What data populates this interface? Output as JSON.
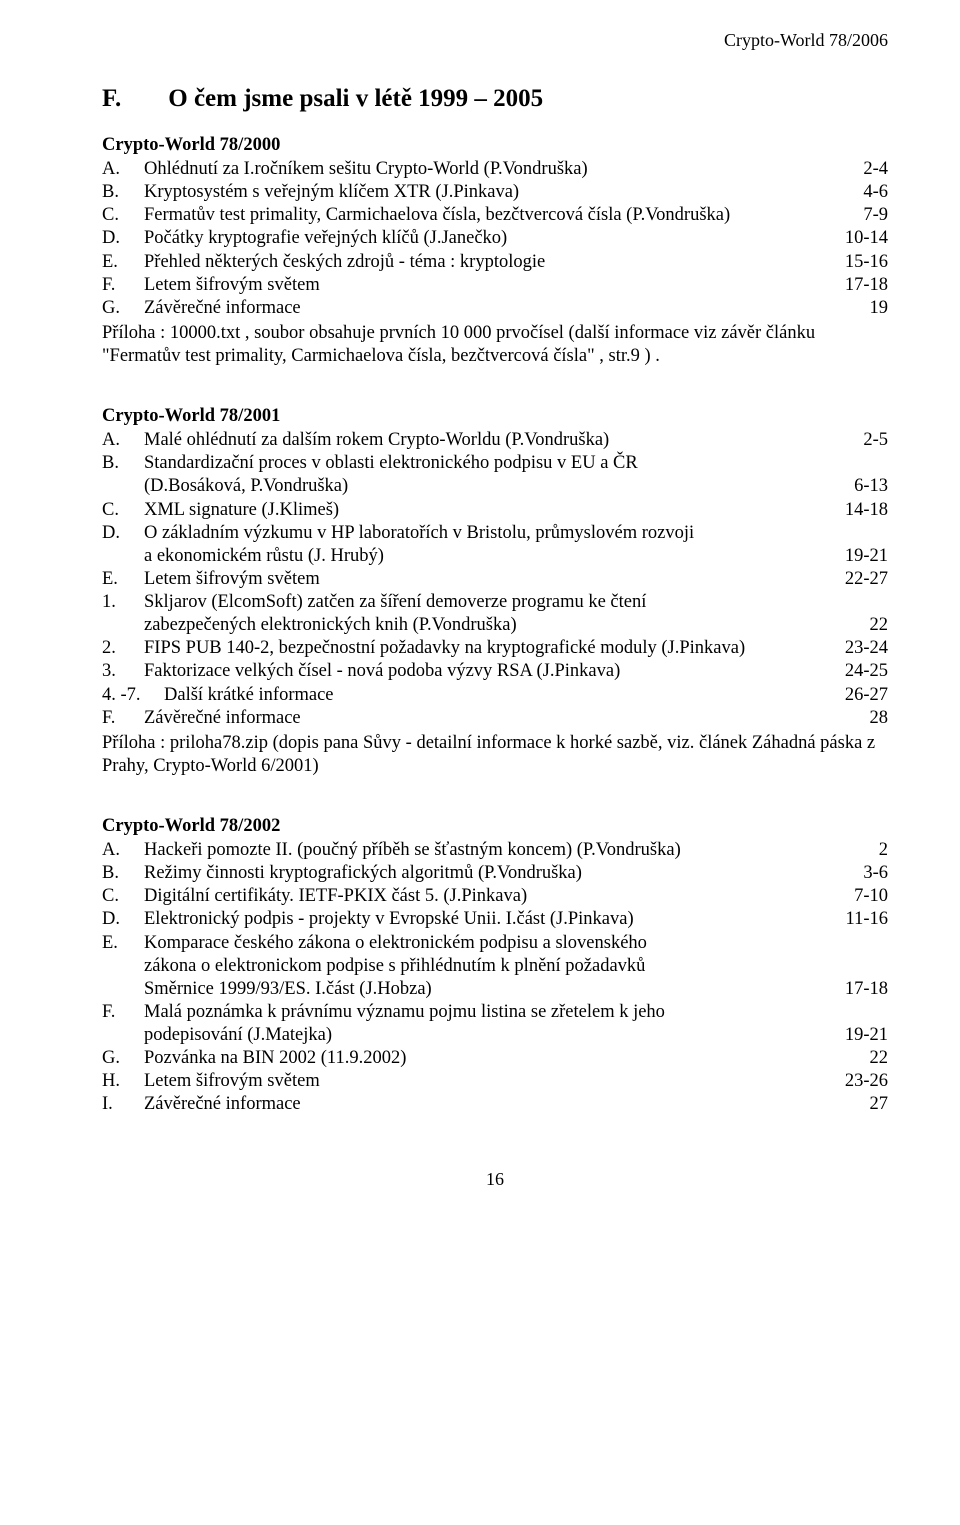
{
  "header": "Crypto-World 78/2006",
  "title": {
    "letter": "F.",
    "text": "O čem jsme psali v létě 1999 – 2005"
  },
  "footer_page": "16",
  "issues": [
    {
      "heading": "Crypto-World 78/2000",
      "entries": [
        {
          "label": "A.",
          "text": "Ohlédnutí za I.ročníkem sešitu Crypto-World (P.Vondruška)",
          "page": "2-4"
        },
        {
          "label": "B.",
          "text": "Kryptosystém s veřejným klíčem XTR (J.Pinkava)",
          "page": "4-6"
        },
        {
          "label": "C.",
          "text": "Fermatův test primality, Carmichaelova čísla, bezčtvercová čísla (P.Vondruška)",
          "page": "7-9"
        },
        {
          "label": "D.",
          "text": "Počátky kryptografie veřejných klíčů (J.Janečko)",
          "page": "10-14"
        },
        {
          "label": "E.",
          "text": "Přehled některých českých zdrojů - téma : kryptologie",
          "page": "15-16"
        },
        {
          "label": "F.",
          "text": "Letem šifrovým světem",
          "page": "17-18"
        },
        {
          "label": "G.",
          "text": "Závěrečné informace",
          "page": "19"
        }
      ],
      "note": "Příloha : 10000.txt , soubor obsahuje prvních 10 000 prvočísel (další informace viz závěr článku \"Fermatův test primality, Carmichaelova čísla, bezčtvercová čísla\" , str.9 ) ."
    },
    {
      "heading": "Crypto-World 78/2001",
      "entries": [
        {
          "label": "A.",
          "text": "Malé ohlédnutí za dalším rokem Crypto-Worldu (P.Vondruška)",
          "page": "2-5"
        },
        {
          "label": "B.",
          "text": "Standardizační proces v oblasti elektronického podpisu v EU a ČR",
          "page": ""
        },
        {
          "label": "",
          "text": "(D.Bosáková, P.Vondruška)",
          "page": "6-13",
          "cont": true
        },
        {
          "label": "C.",
          "text": "XML signature (J.Klimeš)",
          "page": "14-18"
        },
        {
          "label": "D.",
          "text": "O základním výzkumu v HP laboratořích v Bristolu, průmyslovém rozvoji",
          "page": ""
        },
        {
          "label": "",
          "text": "a ekonomickém růstu (J. Hrubý)",
          "page": "19-21",
          "cont": true
        },
        {
          "label": "E.",
          "text": "Letem šifrovým světem",
          "page": "22-27"
        },
        {
          "label": " 1.",
          "text": "Skljarov (ElcomSoft) zatčen za šíření demoverze programu ke čtení",
          "page": ""
        },
        {
          "label": "",
          "text": "zabezpečených elektronických knih (P.Vondruška)",
          "page": "22",
          "cont": true
        },
        {
          "label": " 2.",
          "text": "FIPS PUB 140-2, bezpečnostní požadavky na kryptografické moduly (J.Pinkava)",
          "page": "23-24"
        },
        {
          "label": " 3.",
          "text": "Faktorizace velkých čísel - nová podoba výzvy RSA (J.Pinkava)",
          "page": "24-25"
        },
        {
          "label": " 4. -7.",
          "text": "Další krátké informace",
          "page": "26-27",
          "wide": true
        },
        {
          "label": "F.",
          "text": "Závěrečné informace",
          "page": "28"
        }
      ],
      "note": "Příloha : priloha78.zip (dopis pana Sůvy - detailní informace k horké sazbě, viz. článek Záhadná páska z Prahy, Crypto-World 6/2001)"
    },
    {
      "heading": "Crypto-World 78/2002",
      "entries": [
        {
          "label": "A.",
          "text": "Hackeři pomozte II. (poučný příběh se šťastným koncem) (P.Vondruška)",
          "page": "2"
        },
        {
          "label": "B.",
          "text": "Režimy činnosti kryptografických algoritmů (P.Vondruška)",
          "page": "3-6"
        },
        {
          "label": "C.",
          "text": "Digitální certifikáty. IETF-PKIX část 5. (J.Pinkava)",
          "page": "7-10"
        },
        {
          "label": "D.",
          "text": "Elektronický podpis - projekty v Evropské Unii. I.část (J.Pinkava)",
          "page": "11-16"
        },
        {
          "label": "E.",
          "text": "Komparace českého zákona o elektronickém podpisu a slovenského",
          "page": ""
        },
        {
          "label": "",
          "text": "zákona o elektronickom podpise s přihlédnutím k plnění požadavků",
          "page": "",
          "cont": true
        },
        {
          "label": "",
          "text": "Směrnice 1999/93/ES. I.část (J.Hobza)",
          "page": "17-18",
          "cont": true
        },
        {
          "label": "F.",
          "text": "Malá poznámka k právnímu významu pojmu listina se zřetelem k jeho",
          "page": ""
        },
        {
          "label": "",
          "text": "podepisování (J.Matejka)",
          "page": "19-21",
          "cont": true
        },
        {
          "label": "G.",
          "text": "Pozvánka na BIN 2002 (11.9.2002)",
          "page": "22"
        },
        {
          "label": "H.",
          "text": "Letem šifrovým světem",
          "page": "23-26"
        },
        {
          "label": "I.",
          "text": "Závěrečné informace",
          "page": "27"
        }
      ],
      "note": ""
    }
  ]
}
